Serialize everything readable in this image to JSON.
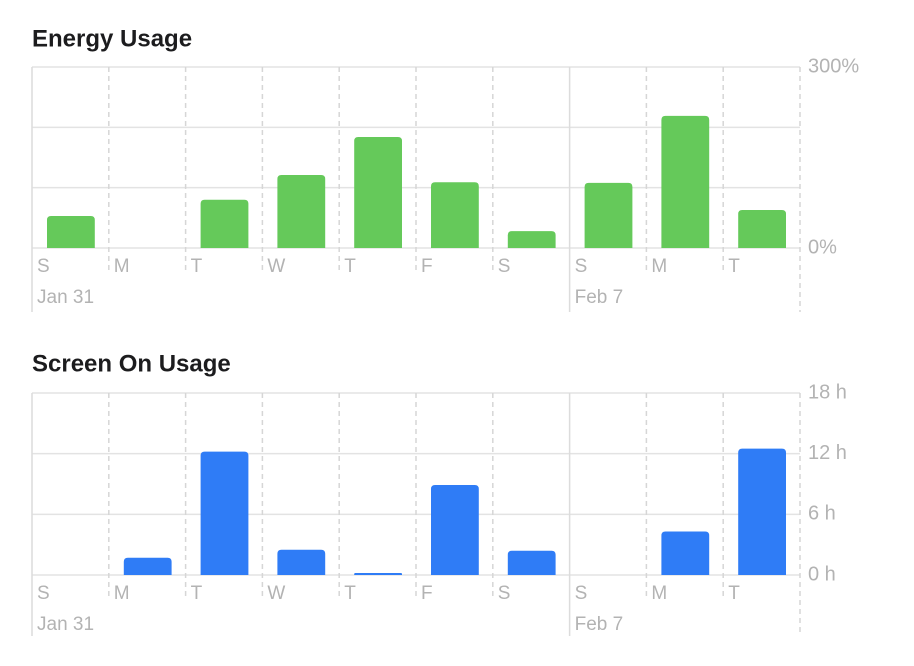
{
  "chart_data": [
    {
      "type": "bar",
      "title": "Energy Usage",
      "categories": [
        "S",
        "M",
        "T",
        "W",
        "T",
        "F",
        "S",
        "S",
        "M",
        "T"
      ],
      "dates": [
        "Jan 31",
        null,
        null,
        null,
        null,
        null,
        null,
        "Feb 7",
        null,
        null
      ],
      "values": [
        53,
        0,
        80,
        121,
        184,
        109,
        28,
        108,
        219,
        63
      ],
      "color": "#65c95a",
      "ylim": [
        0,
        300
      ],
      "yticks": [
        {
          "value": 300,
          "label": "300%"
        },
        {
          "value": 0,
          "label": "0%"
        }
      ],
      "ygrid": [
        0,
        100,
        200,
        300
      ]
    },
    {
      "type": "bar",
      "title": "Screen On Usage",
      "categories": [
        "S",
        "M",
        "T",
        "W",
        "T",
        "F",
        "S",
        "S",
        "M",
        "T"
      ],
      "dates": [
        "Jan 31",
        null,
        null,
        null,
        null,
        null,
        null,
        "Feb 7",
        null,
        null
      ],
      "values": [
        0,
        1.7,
        12.2,
        2.5,
        0.2,
        8.9,
        2.4,
        0,
        4.3,
        12.5
      ],
      "color": "#2f7cf6",
      "ylim": [
        0,
        18
      ],
      "yticks": [
        {
          "value": 18,
          "label": "18 h"
        },
        {
          "value": 12,
          "label": "12 h"
        },
        {
          "value": 6,
          "label": "6 h"
        },
        {
          "value": 0,
          "label": "0 h"
        }
      ]
    }
  ]
}
